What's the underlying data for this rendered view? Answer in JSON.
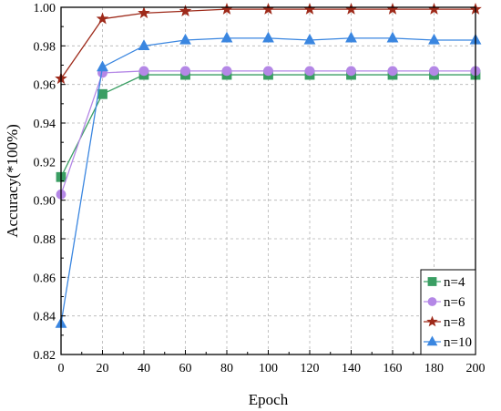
{
  "chart_data": {
    "type": "line",
    "title": "",
    "xlabel": "Epoch",
    "ylabel": "Accuracy(*100%)",
    "x": [
      0,
      20,
      40,
      60,
      80,
      100,
      120,
      140,
      160,
      180,
      200
    ],
    "xticks": [
      "0",
      "20",
      "40",
      "60",
      "80",
      "100",
      "120",
      "140",
      "160",
      "180",
      "200"
    ],
    "yticks": [
      "0.82",
      "0.84",
      "0.86",
      "0.88",
      "0.90",
      "0.92",
      "0.94",
      "0.96",
      "0.98",
      "1.00"
    ],
    "xlim": [
      0,
      200
    ],
    "ylim": [
      0.82,
      1.0
    ],
    "grid": true,
    "legend_position": "bottom-right",
    "series": [
      {
        "name": "n=4",
        "color": "#3a9e63",
        "marker": "square",
        "values": [
          0.912,
          0.955,
          0.965,
          0.965,
          0.965,
          0.965,
          0.965,
          0.965,
          0.965,
          0.965,
          0.965
        ]
      },
      {
        "name": "n=6",
        "color": "#b487e6",
        "marker": "circle",
        "values": [
          0.903,
          0.966,
          0.967,
          0.967,
          0.967,
          0.967,
          0.967,
          0.967,
          0.967,
          0.967,
          0.967
        ]
      },
      {
        "name": "n=8",
        "color": "#9e2a1a",
        "marker": "star",
        "values": [
          0.963,
          0.994,
          0.997,
          0.998,
          0.999,
          0.999,
          0.999,
          0.999,
          0.999,
          0.999,
          0.999
        ]
      },
      {
        "name": "n=10",
        "color": "#3a86e0",
        "marker": "triangle",
        "values": [
          0.836,
          0.969,
          0.98,
          0.983,
          0.984,
          0.984,
          0.983,
          0.984,
          0.984,
          0.983,
          0.983
        ]
      }
    ]
  }
}
